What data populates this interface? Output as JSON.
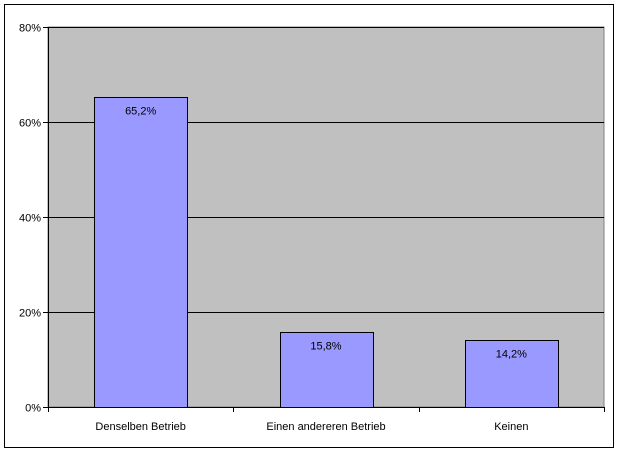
{
  "chart_data": {
    "type": "bar",
    "title": "",
    "xlabel": "",
    "ylabel": "",
    "categories": [
      "Denselben Betrieb",
      "Einen andereren Betrieb",
      "Keinen"
    ],
    "values": [
      65.2,
      15.8,
      14.2
    ],
    "data_labels": [
      "65,2%",
      "15,8%",
      "14,2%"
    ],
    "ylim": [
      0,
      80
    ],
    "y_ticks": [
      0,
      20,
      40,
      60,
      80
    ],
    "y_tick_labels": [
      "0%",
      "20%",
      "40%",
      "60%",
      "80%"
    ],
    "grid": true,
    "legend": "none",
    "colors": {
      "plot_area": "#c0c0c0",
      "bar_fill": "#9999ff",
      "bar_stroke": "#000000",
      "gridline": "#000000",
      "frame": "#000000"
    }
  }
}
